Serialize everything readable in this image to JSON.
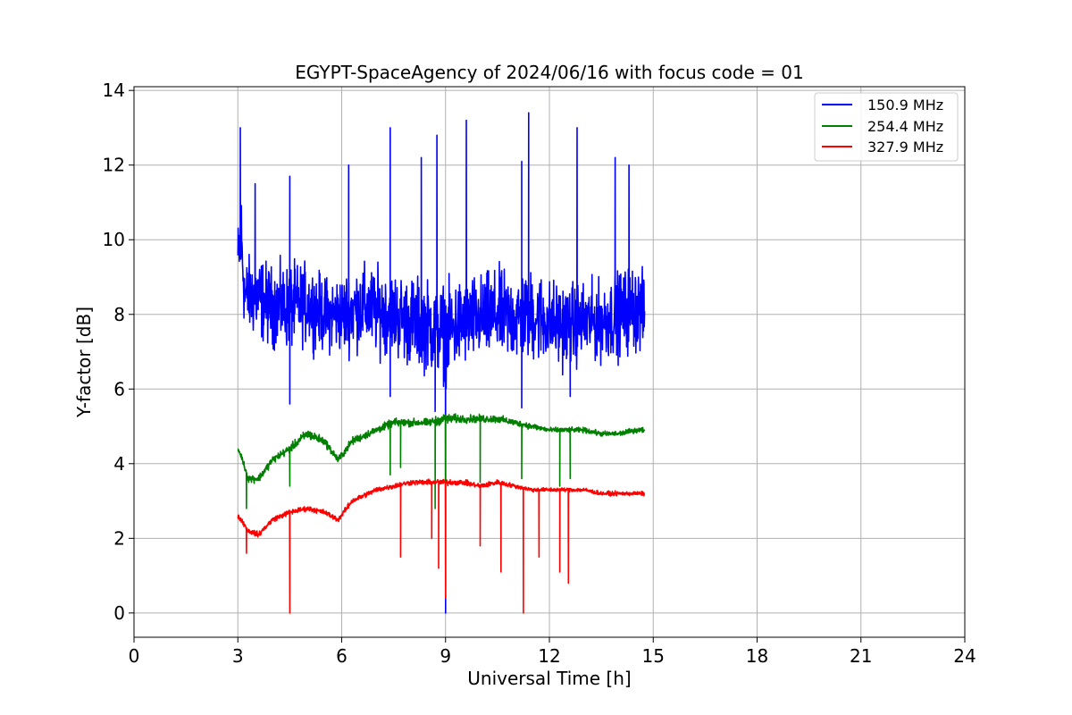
{
  "chart_data": {
    "type": "line",
    "title": "EGYPT-SpaceAgency of 2024/06/16 with focus code = 01",
    "xlabel": "Universal Time [h]",
    "ylabel": "Y-factor [dB]",
    "xlim": [
      0,
      24
    ],
    "ylim": [
      -0.65,
      14.1
    ],
    "xticks": [
      "0",
      "3",
      "6",
      "9",
      "12",
      "15",
      "18",
      "21",
      "24"
    ],
    "yticks": [
      "0",
      "2",
      "4",
      "6",
      "8",
      "10",
      "12",
      "14"
    ],
    "grid": true,
    "legend_position": "top-right",
    "series": [
      {
        "name": "150.9 MHz",
        "color": "#0000ff",
        "x": [
          3.0,
          3.1,
          3.2,
          3.5,
          4.0,
          4.5,
          5.0,
          5.5,
          6.0,
          6.5,
          7.0,
          7.5,
          8.0,
          8.5,
          9.0,
          9.5,
          10.0,
          10.5,
          11.0,
          11.5,
          12.0,
          12.5,
          13.0,
          13.5,
          14.0,
          14.5,
          14.75
        ],
        "y": [
          9.5,
          10.0,
          8.5,
          8.5,
          8.2,
          8.2,
          8.3,
          8.0,
          8.0,
          8.2,
          8.1,
          8.0,
          7.8,
          7.7,
          7.5,
          7.8,
          7.9,
          8.0,
          7.9,
          8.0,
          7.8,
          7.7,
          7.8,
          7.8,
          8.0,
          8.2,
          8.0
        ],
        "amp": [
          1.3,
          2.0,
          1.4,
          1.6,
          1.5,
          1.6,
          1.5,
          1.4,
          1.5,
          1.6,
          1.6,
          1.6,
          1.7,
          1.7,
          1.8,
          1.7,
          1.6,
          1.7,
          1.7,
          1.8,
          1.6,
          1.6,
          1.5,
          1.5,
          1.6,
          1.7,
          1.4
        ],
        "spikes": [
          [
            3.07,
            13.0
          ],
          [
            3.5,
            11.5
          ],
          [
            4.5,
            11.7
          ],
          [
            6.2,
            12.0
          ],
          [
            7.4,
            13.0
          ],
          [
            8.3,
            12.2
          ],
          [
            8.75,
            12.8
          ],
          [
            9.6,
            13.2
          ],
          [
            11.2,
            12.1
          ],
          [
            11.4,
            13.4
          ],
          [
            12.8,
            13.0
          ],
          [
            13.9,
            12.2
          ],
          [
            14.3,
            12.0
          ]
        ],
        "dips": [
          [
            4.5,
            5.6
          ],
          [
            7.4,
            5.8
          ],
          [
            8.7,
            5.4
          ],
          [
            9.0,
            0.0
          ],
          [
            11.2,
            5.5
          ],
          [
            12.6,
            5.8
          ]
        ]
      },
      {
        "name": "254.4 MHz",
        "color": "#008000",
        "x": [
          3.0,
          3.1,
          3.3,
          3.6,
          4.0,
          4.5,
          5.0,
          5.5,
          5.9,
          6.3,
          7.0,
          7.5,
          8.0,
          8.5,
          9.0,
          9.5,
          10.0,
          10.5,
          11.0,
          11.5,
          12.0,
          12.5,
          13.0,
          13.5,
          14.0,
          14.5,
          14.75
        ],
        "y": [
          4.4,
          4.2,
          3.6,
          3.6,
          4.1,
          4.4,
          4.8,
          4.6,
          4.1,
          4.6,
          4.9,
          5.1,
          5.1,
          5.1,
          5.2,
          5.2,
          5.2,
          5.2,
          5.1,
          5.0,
          4.9,
          4.9,
          4.9,
          4.8,
          4.8,
          4.9,
          4.9
        ],
        "amp": [
          0.1,
          0.1,
          0.15,
          0.15,
          0.15,
          0.15,
          0.2,
          0.15,
          0.15,
          0.15,
          0.15,
          0.15,
          0.15,
          0.15,
          0.2,
          0.15,
          0.15,
          0.15,
          0.12,
          0.12,
          0.1,
          0.1,
          0.1,
          0.1,
          0.1,
          0.1,
          0.1
        ],
        "spikes": [],
        "dips": [
          [
            3.25,
            2.8
          ],
          [
            4.5,
            3.4
          ],
          [
            7.4,
            3.7
          ],
          [
            7.7,
            3.9
          ],
          [
            8.7,
            2.8
          ],
          [
            9.0,
            2.4
          ],
          [
            10.0,
            3.5
          ],
          [
            11.2,
            3.6
          ],
          [
            12.3,
            3.4
          ],
          [
            12.6,
            3.6
          ]
        ]
      },
      {
        "name": "327.9 MHz",
        "color": "#ff0000",
        "x": [
          3.0,
          3.1,
          3.3,
          3.6,
          4.0,
          4.5,
          5.0,
          5.5,
          5.9,
          6.3,
          7.0,
          7.5,
          8.0,
          8.5,
          9.0,
          9.5,
          10.0,
          10.5,
          11.0,
          11.5,
          12.0,
          12.5,
          13.0,
          13.5,
          14.0,
          14.5,
          14.75
        ],
        "y": [
          2.6,
          2.5,
          2.2,
          2.1,
          2.5,
          2.7,
          2.8,
          2.7,
          2.5,
          3.0,
          3.3,
          3.4,
          3.5,
          3.5,
          3.5,
          3.5,
          3.4,
          3.5,
          3.4,
          3.3,
          3.3,
          3.3,
          3.3,
          3.2,
          3.2,
          3.2,
          3.2
        ],
        "amp": [
          0.1,
          0.1,
          0.1,
          0.1,
          0.1,
          0.1,
          0.1,
          0.1,
          0.1,
          0.1,
          0.1,
          0.1,
          0.1,
          0.1,
          0.12,
          0.1,
          0.1,
          0.1,
          0.08,
          0.08,
          0.08,
          0.08,
          0.08,
          0.08,
          0.08,
          0.08,
          0.08
        ],
        "spikes": [],
        "dips": [
          [
            3.25,
            1.6
          ],
          [
            4.5,
            0.0
          ],
          [
            7.7,
            1.5
          ],
          [
            8.6,
            2.0
          ],
          [
            8.8,
            1.2
          ],
          [
            9.0,
            0.4
          ],
          [
            10.0,
            1.8
          ],
          [
            10.6,
            1.1
          ],
          [
            11.25,
            0.0
          ],
          [
            11.7,
            1.5
          ],
          [
            12.3,
            1.1
          ],
          [
            12.55,
            0.8
          ]
        ]
      }
    ]
  }
}
